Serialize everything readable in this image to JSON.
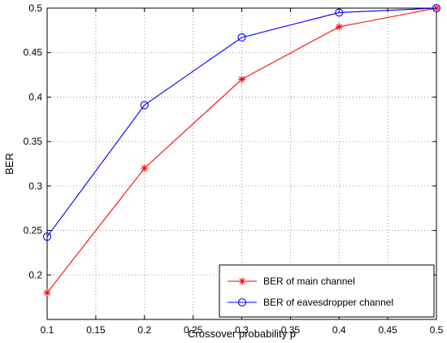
{
  "chart_data": {
    "type": "line",
    "title": "",
    "xlabel": "Crossover probability p",
    "ylabel": "BER",
    "xlim": [
      0.1,
      0.5
    ],
    "ylim": [
      0.15,
      0.5
    ],
    "xticks": [
      0.1,
      0.15,
      0.2,
      0.25,
      0.3,
      0.35,
      0.4,
      0.45,
      0.5
    ],
    "yticks": [
      0.2,
      0.25,
      0.3,
      0.35,
      0.4,
      0.45,
      0.5
    ],
    "xtick_labels": [
      "0.1",
      "0.15",
      "0.2",
      "0.25",
      "0.3",
      "0.35",
      "0.4",
      "0.45",
      "0.5"
    ],
    "ytick_labels": [
      "0.2",
      "0.25",
      "0.3",
      "0.35",
      "0.4",
      "0.45",
      "0.5"
    ],
    "grid": true,
    "legend_position": "bottom-right",
    "x": [
      0.1,
      0.2,
      0.3,
      0.4,
      0.5
    ],
    "series": [
      {
        "name": "BER of main channel",
        "values": [
          0.18,
          0.32,
          0.42,
          0.479,
          0.5
        ],
        "color": "#ff0000",
        "marker": "asterisk"
      },
      {
        "name": "BER of eavesdropper channel",
        "values": [
          0.243,
          0.391,
          0.467,
          0.495,
          0.5
        ],
        "color": "#0000ff",
        "marker": "circle"
      }
    ]
  }
}
